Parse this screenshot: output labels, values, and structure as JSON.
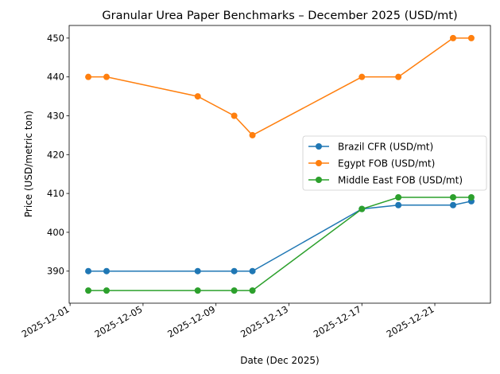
{
  "chart_data": {
    "type": "line",
    "title": "Granular Urea Paper Benchmarks – December 2025 (USD/mt)",
    "xlabel": "Date (Dec 2025)",
    "ylabel": "Price (USD/metric ton)",
    "x": [
      "2025-12-02",
      "2025-12-03",
      "2025-12-08",
      "2025-12-10",
      "2025-12-11",
      "2025-12-17",
      "2025-12-19",
      "2025-12-22",
      "2025-12-23"
    ],
    "xlim": [
      "2025-11-30.95",
      "2025-12-24.05"
    ],
    "ylim": [
      381.75,
      453.25
    ],
    "x_ticks": [
      "2025-12-01",
      "2025-12-05",
      "2025-12-09",
      "2025-12-13",
      "2025-12-17",
      "2025-12-21"
    ],
    "y_ticks": [
      390,
      400,
      410,
      420,
      430,
      440,
      450
    ],
    "grid": false,
    "legend_position": "center-right",
    "series": [
      {
        "name": "Brazil CFR (USD/mt)",
        "color": "#1f77b4",
        "values": [
          390,
          390,
          390,
          390,
          390,
          406,
          407,
          407,
          408
        ]
      },
      {
        "name": "Egypt FOB (USD/mt)",
        "color": "#ff7f0e",
        "values": [
          440,
          440,
          435,
          430,
          425,
          440,
          440,
          450,
          450
        ]
      },
      {
        "name": "Middle East FOB (USD/mt)",
        "color": "#2ca02c",
        "values": [
          385,
          385,
          385,
          385,
          385,
          406,
          409,
          409,
          409
        ]
      }
    ]
  }
}
